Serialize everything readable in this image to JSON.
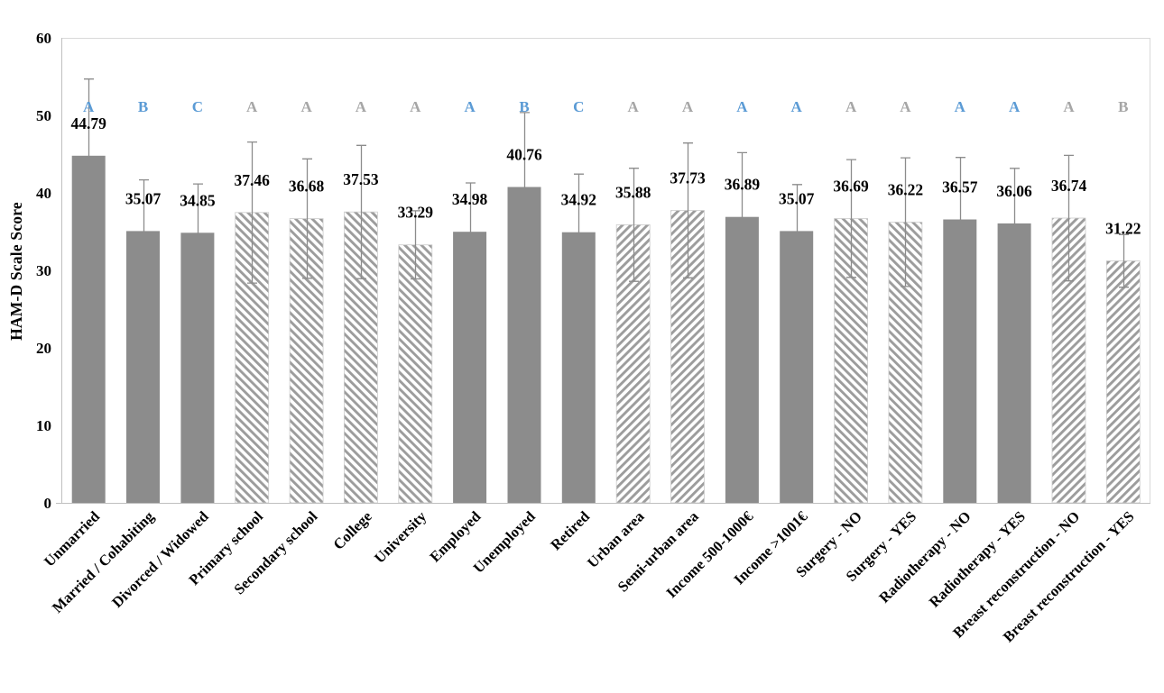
{
  "chart_data": {
    "type": "bar",
    "title": "",
    "xlabel": "",
    "ylabel": "HAM-D Scale Score",
    "ylim": [
      0,
      60
    ],
    "yticks": [
      0,
      10,
      20,
      30,
      40,
      50,
      60
    ],
    "grid": false,
    "legend": false,
    "categories": [
      "Unmarried",
      "Married / Cohabiting",
      "Divorced / Widowed",
      "Primary school",
      "Secondary school",
      "College",
      "University",
      "Employed",
      "Unemployed",
      "Retired",
      "Urban area",
      "Semi-urban area",
      "Income 500-1000€",
      "Income >1001€",
      "Surgery - NO",
      "Surgery - YES",
      "Radiotherapy - NO",
      "Radiotherapy - YES",
      "Breast reconstruction - NO",
      "Breast reconstruction - YES"
    ],
    "values": [
      44.79,
      35.07,
      34.85,
      37.46,
      36.68,
      37.53,
      33.29,
      34.98,
      40.76,
      34.92,
      35.88,
      37.73,
      36.89,
      35.07,
      36.69,
      36.22,
      36.57,
      36.06,
      36.74,
      31.22
    ],
    "errors_est": [
      9.9,
      6.6,
      6.3,
      9.1,
      7.7,
      8.6,
      4.4,
      6.3,
      9.6,
      7.5,
      7.3,
      8.7,
      8.3,
      6.0,
      7.6,
      8.3,
      8.0,
      7.1,
      8.1,
      3.4
    ],
    "letters": [
      "A",
      "B",
      "C",
      "A",
      "A",
      "A",
      "A",
      "A",
      "B",
      "C",
      "A",
      "A",
      "A",
      "A",
      "A",
      "A",
      "A",
      "A",
      "A",
      "B"
    ],
    "letter_styles": [
      "blue",
      "blue",
      "blue",
      "gray",
      "gray",
      "gray",
      "gray",
      "blue",
      "blue",
      "blue",
      "gray",
      "gray",
      "blue",
      "blue",
      "gray",
      "gray",
      "blue",
      "blue",
      "gray",
      "gray"
    ],
    "bar_fills": [
      "solid",
      "solid",
      "solid",
      "hatch-back",
      "hatch-back",
      "hatch-back",
      "hatch-back",
      "solid",
      "solid",
      "solid",
      "hatch-fwd",
      "hatch-fwd",
      "solid",
      "solid",
      "hatch-back",
      "hatch-back",
      "solid",
      "solid",
      "hatch-fwd",
      "hatch-fwd"
    ],
    "colors": {
      "bar_solid": "#8c8c8c",
      "hatch_stripe": "#9c9c9c",
      "hatch_background": "#ffffff",
      "hatch_outline": "#cccccc",
      "error_bar": "#8c8c8c",
      "letter_blue": "#5b9bd5",
      "letter_gray": "#a6a6a6",
      "axis_line": "#bfbfbf",
      "plot_border": "#d9d9d9",
      "text": "#000000"
    }
  }
}
